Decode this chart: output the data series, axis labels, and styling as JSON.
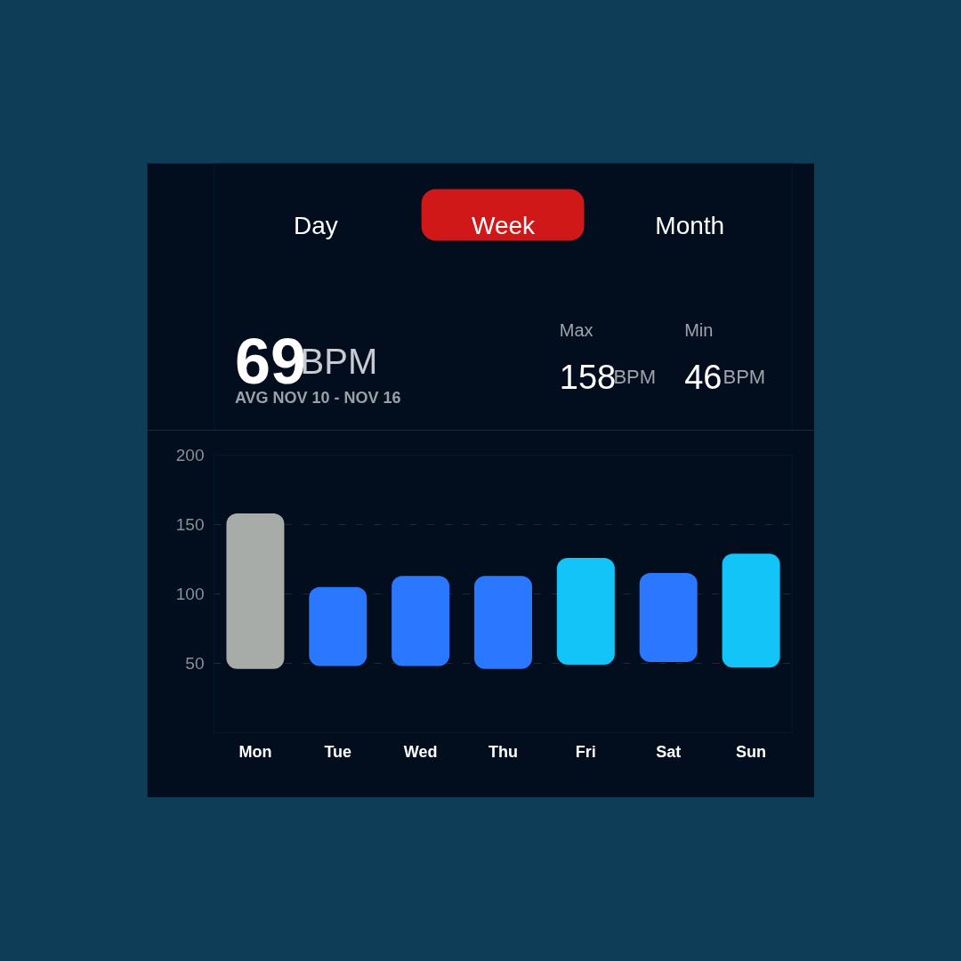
{
  "chart_data": {
    "type": "bar",
    "categories": [
      "Mon",
      "Tue",
      "Wed",
      "Thu",
      "Fri",
      "Sat",
      "Sun"
    ],
    "base": [
      46,
      48,
      48,
      46,
      49,
      51,
      47
    ],
    "values": [
      112,
      57,
      65,
      67,
      77,
      64,
      82
    ],
    "colors": [
      "#a8aca8",
      "#2a78ff",
      "#2a78ff",
      "#2a78ff",
      "#12c4f8",
      "#2a78ff",
      "#12c4f8"
    ],
    "ylim": [
      0,
      200
    ],
    "yticks": [
      {
        "value": 0,
        "label": null
      },
      50,
      100,
      150,
      200
    ],
    "grid": "y",
    "annotations": [
      "Day",
      "Week",
      "Month",
      "69",
      "BPM",
      "AVG NOV 10 - NOV 16",
      "Max",
      "158",
      "BPM",
      "Min",
      "46",
      "BPM"
    ]
  }
}
